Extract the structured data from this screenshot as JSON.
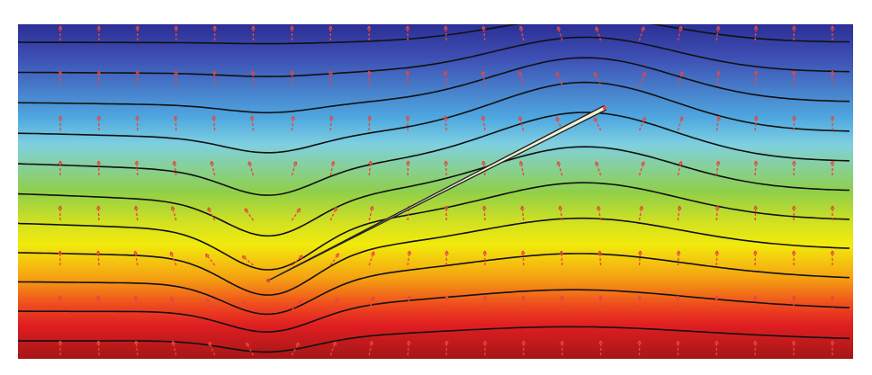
{
  "figure": {
    "type": "potential-field-diagram",
    "description_visible_text": [],
    "field": {
      "colormap": "jet",
      "color_stops": [
        "#2b2f95",
        "#3e4fb3",
        "#4fa8e0",
        "#7fd0e0",
        "#8fcf4a",
        "#d6e21e",
        "#f2ea0c",
        "#f5a012",
        "#ee4a1e",
        "#e01e22",
        "#a41616"
      ],
      "contour_count": 11,
      "contour_color": "#111111",
      "arrow_color": "#e8463f",
      "arrow_columns": 21,
      "arrow_rows": 8
    },
    "inclusion": {
      "shape": "thin-inclined-crack",
      "fill_color": "#f4f0d0",
      "outline_color": "#222222"
    }
  }
}
